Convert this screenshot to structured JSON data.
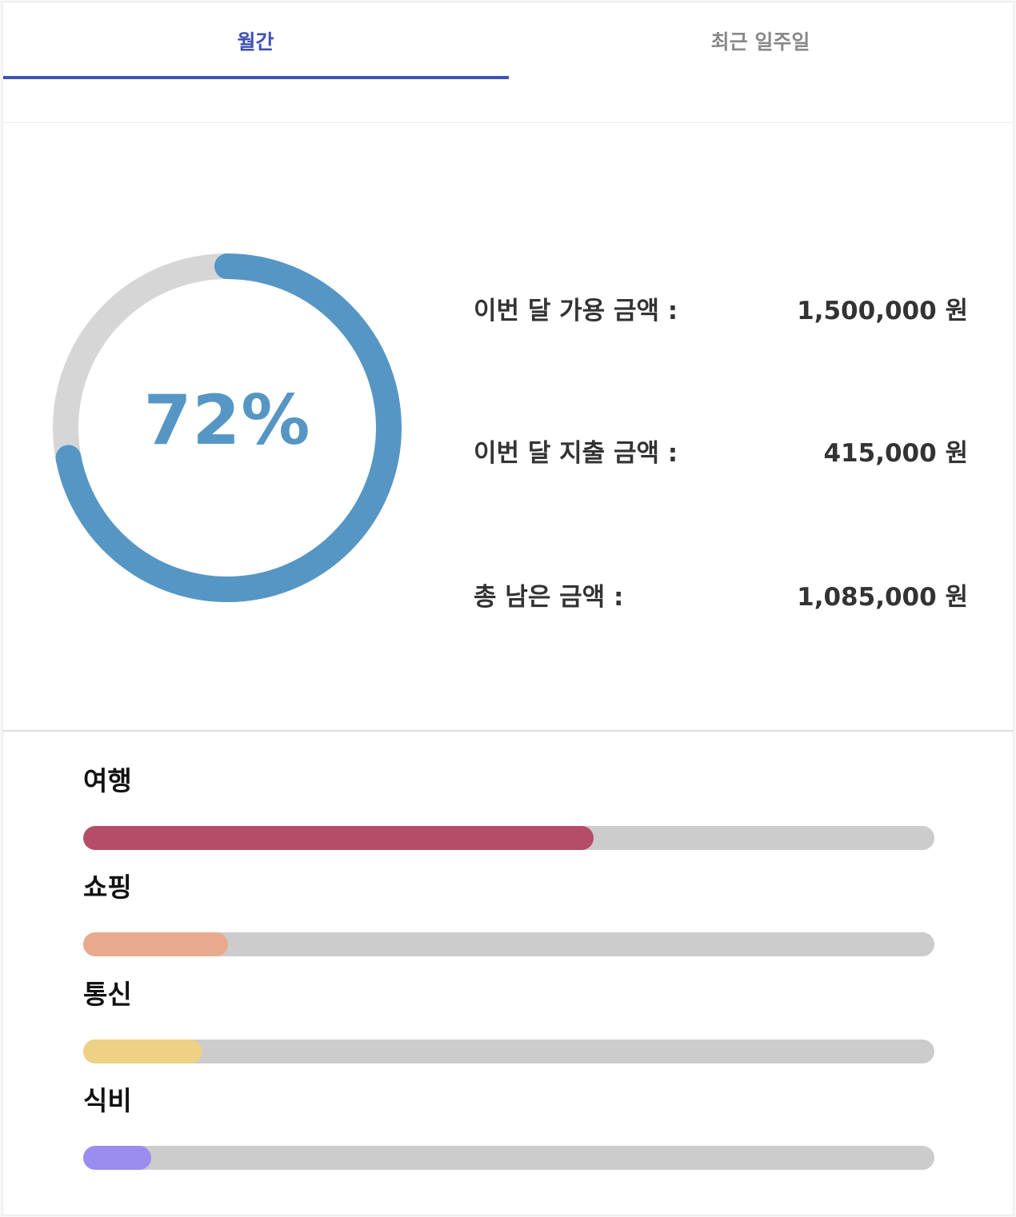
{
  "tabs": [
    {
      "label": "월간",
      "active": true
    },
    {
      "label": "최근 일주일",
      "active": false
    }
  ],
  "colors": {
    "accent": "#3f51b5",
    "ring_progress": "#5696c5",
    "ring_track": "#d6d6d6",
    "bar_track": "#cccccc"
  },
  "summary": {
    "percent": 0.72,
    "percent_label": "72%",
    "rows": [
      {
        "label": "이번 달 가용 금액 :",
        "value": "1,500,000 원"
      },
      {
        "label": "이번 달 지출 금액 :",
        "value": "415,000 원"
      },
      {
        "label": "총 남은 금액 :",
        "value": "1,085,000 원"
      }
    ]
  },
  "categories": [
    {
      "name": "여행",
      "fraction": 0.6,
      "color": "#b44e68"
    },
    {
      "name": "쇼핑",
      "fraction": 0.17,
      "color": "#eaa98d"
    },
    {
      "name": "통신",
      "fraction": 0.14,
      "color": "#eed087"
    },
    {
      "name": "식비",
      "fraction": 0.08,
      "color": "#9b8cf0"
    }
  ]
}
